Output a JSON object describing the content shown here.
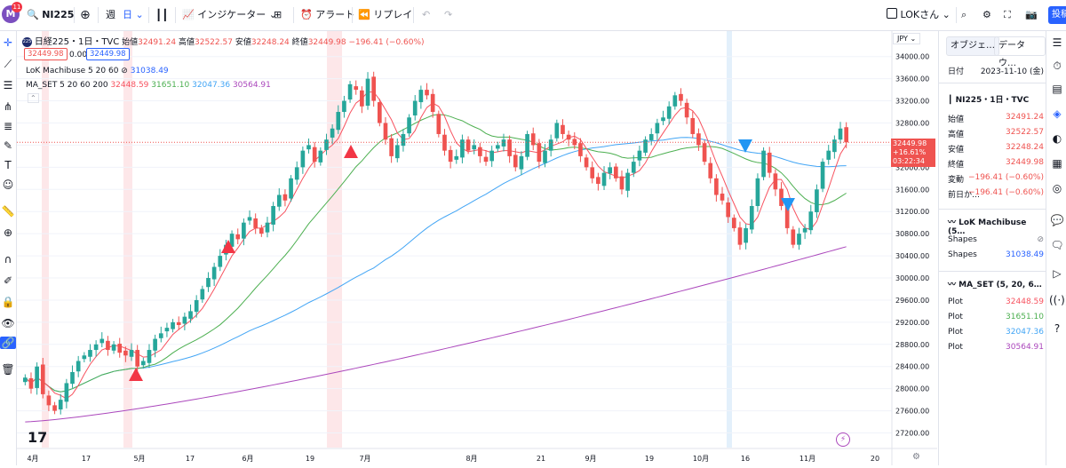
{
  "topbar": {
    "avatar_letter": "M",
    "notif_count": "11",
    "symbol": "NI225",
    "period_week": "週",
    "period_day": "日",
    "indicators_label": "インジケーター",
    "alert_label": "アラート",
    "replay_label": "リプレイ",
    "user_label": "LOKさん",
    "publish_label": "投稿"
  },
  "legend": {
    "title": "日経225・1日・TVC",
    "o_label": "始値",
    "o_val": "32491.24",
    "h_label": "高値",
    "h_val": "32522.57",
    "l_label": "安値",
    "l_val": "32248.24",
    "c_label": "終値",
    "c_val": "32449.98",
    "chg": "−196.41 (−0.60%)",
    "bid": "32449.98",
    "spread": "0.00",
    "ask": "32449.98",
    "ind1_name": "LoK Machibuse 5 20 60",
    "ind1_val": "31038.49",
    "ind2_name": "MA_SET 5 20 60 200",
    "ind2_v1": "32448.59",
    "ind2_v2": "31651.10",
    "ind2_v3": "32047.36",
    "ind2_v4": "30564.91",
    "currency": "JPY",
    "price_tag": "32449.98",
    "price_tag_pct": "+16.61%",
    "price_tag_time": "03:22:34"
  },
  "panel": {
    "tab1": "オブジェ…",
    "tab2": "データウ…",
    "date_label": "日付",
    "date_val": "2023-11-10 (金)",
    "sym": "NI225・1日・TVC",
    "rows": [
      {
        "k": "始値",
        "v": "32491.24"
      },
      {
        "k": "高値",
        "v": "32522.57"
      },
      {
        "k": "安値",
        "v": "32248.24"
      },
      {
        "k": "終値",
        "v": "32449.98"
      },
      {
        "k": "変動",
        "v": "−196.41 (−0.60%)"
      },
      {
        "k": "前日か…",
        "v": "−196.41 (−0.60%)"
      }
    ],
    "ind1_title": "LoK Machibuse (5…",
    "ind1_rows": [
      {
        "k": "Shapes",
        "v": "⊘"
      },
      {
        "k": "Shapes",
        "v": "31038.49"
      }
    ],
    "ind2_title": "MA_SET (5, 20, 6…",
    "ind2_rows": [
      {
        "k": "Plot",
        "v": "32448.59"
      },
      {
        "k": "Plot",
        "v": "31651.10"
      },
      {
        "k": "Plot",
        "v": "32047.36"
      },
      {
        "k": "Plot",
        "v": "30564.91"
      }
    ]
  },
  "colors": {
    "up": "#26a69a",
    "down": "#ef5350",
    "ma5": "#f7525f",
    "ma20": "#4caf50",
    "ma60": "#42a5f5",
    "ma200": "#ab47bc",
    "accent": "#2962ff"
  },
  "chart_data": {
    "type": "candlestick",
    "symbol": "日経225・1日・TVC",
    "ylim": [
      27000,
      34300
    ],
    "y_ticks": [
      27200,
      27600,
      28000,
      28400,
      28800,
      29200,
      29600,
      30000,
      30400,
      30800,
      31200,
      31600,
      32000,
      32400,
      32800,
      33200,
      33600,
      34000
    ],
    "x_ticks": [
      "4月",
      "17",
      "5月",
      "17",
      "6月",
      "19",
      "7月",
      "8月",
      "21",
      "9月",
      "19",
      "10月",
      "16",
      "11月",
      "20"
    ],
    "closes": [
      28200,
      28000,
      28400,
      27900,
      27700,
      27600,
      27800,
      28100,
      28300,
      28500,
      28600,
      28700,
      28800,
      28900,
      28700,
      28800,
      28650,
      28600,
      28700,
      28400,
      28500,
      28700,
      28900,
      29000,
      29100,
      29200,
      29150,
      29300,
      29400,
      29600,
      29800,
      30000,
      30200,
      30400,
      30600,
      30800,
      30700,
      31000,
      31100,
      30900,
      30800,
      31000,
      31300,
      31500,
      31400,
      31800,
      32000,
      32300,
      32400,
      32100,
      32300,
      32500,
      32700,
      33000,
      33200,
      33500,
      33400,
      33100,
      33600,
      33200,
      32800,
      32500,
      32200,
      32400,
      32600,
      32900,
      33200,
      33400,
      33300,
      33000,
      32600,
      32300,
      32100,
      32200,
      32500,
      32300,
      32400,
      32200,
      32100,
      32300,
      32400,
      32500,
      32200,
      32000,
      32200,
      32600,
      32400,
      32100,
      32300,
      32500,
      32800,
      32600,
      32500,
      32400,
      32200,
      32000,
      31800,
      31700,
      31900,
      32000,
      31800,
      31600,
      31900,
      32100,
      32300,
      32500,
      32600,
      32800,
      32900,
      33100,
      33300,
      33200,
      32900,
      32600,
      32400,
      32100,
      31800,
      31500,
      31400,
      31100,
      30900,
      30600,
      30900,
      31300,
      31800,
      32300,
      31900,
      31600,
      31300,
      30900,
      30600,
      30800,
      30900,
      31200,
      31600,
      32100,
      32300,
      32500,
      32700,
      32449.98
    ],
    "ma200_start": 27400,
    "ma200_end": 30564.91
  }
}
